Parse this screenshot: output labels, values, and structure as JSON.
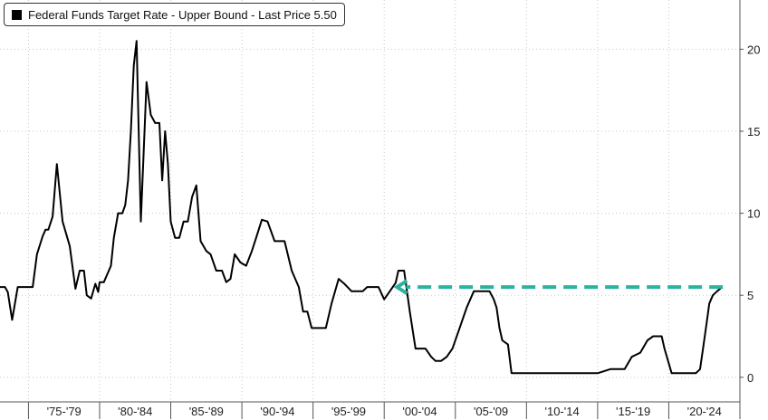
{
  "legend": {
    "label": "Federal Funds Target Rate - Upper Bound - Last Price 5.50"
  },
  "colors": {
    "line": "#000000",
    "arrow": "#2bb3a0",
    "grid": "#c8c8c8",
    "axis": "#555555"
  },
  "chart_data": {
    "type": "line",
    "title": "",
    "xlabel": "",
    "ylabel": "",
    "xlim": [
      1973.0,
      2025.0
    ],
    "ylim": [
      -1.5,
      23.0
    ],
    "y_ticks": [
      0,
      5,
      10,
      15,
      20
    ],
    "x_ticks": [
      "'75-'79",
      "'80-'84",
      "'85-'89",
      "'90-'94",
      "'95-'99",
      "'00-'04",
      "'05-'09",
      "'10-'14",
      "'15-'19",
      "'20-'24"
    ],
    "grid": true,
    "legend_position": "top-left",
    "series": [
      {
        "name": "Federal Funds Target Rate - Upper Bound",
        "last_price": 5.5,
        "x": [
          1973.0,
          1973.35,
          1973.55,
          1973.85,
          1974.25,
          1974.7,
          1975.3,
          1975.6,
          1976.0,
          1976.2,
          1976.4,
          1976.7,
          1977.0,
          1977.4,
          1977.9,
          1978.3,
          1978.6,
          1978.9,
          1979.1,
          1979.4,
          1979.7,
          1979.9,
          1980.0,
          1980.1,
          1980.3,
          1980.55,
          1980.8,
          1981.0,
          1981.3,
          1981.6,
          1981.8,
          1982.0,
          1982.2,
          1982.4,
          1982.6,
          1982.9,
          1983.3,
          1983.6,
          1983.9,
          1984.2,
          1984.4,
          1984.6,
          1984.8,
          1985.0,
          1985.3,
          1985.6,
          1985.9,
          1986.2,
          1986.5,
          1986.8,
          1987.1,
          1987.5,
          1987.8,
          1988.2,
          1988.6,
          1988.9,
          1989.2,
          1989.5,
          1989.9,
          1990.3,
          1990.7,
          1991.0,
          1991.4,
          1991.8,
          1992.3,
          1992.7,
          1993.0,
          1993.5,
          1994.0,
          1994.3,
          1994.6,
          1994.9,
          1995.1,
          1995.3,
          1995.6,
          1995.9,
          1996.3,
          1996.8,
          1997.2,
          1997.7,
          1998.2,
          1998.5,
          1998.8,
          1998.9,
          1999.2,
          1999.6,
          2000.0,
          2000.4,
          2000.8,
          2001.0,
          2001.4,
          2001.8,
          2002.2,
          2002.9,
          2003.3,
          2003.6,
          2004.0,
          2004.4,
          2004.8,
          2005.3,
          2005.8,
          2006.3,
          2006.5,
          2006.9,
          2007.4,
          2007.7,
          2007.9,
          2008.1,
          2008.3,
          2008.7,
          2008.95,
          2009.0,
          2015.0,
          2015.9,
          2016.9,
          2017.4,
          2018.0,
          2018.5,
          2018.9,
          2019.5,
          2019.7,
          2020.2,
          2020.3,
          2021.9,
          2022.2,
          2022.45,
          2022.65,
          2022.85,
          2023.1,
          2023.4,
          2023.75
        ],
        "values": [
          5.5,
          5.5,
          5.2,
          3.5,
          5.5,
          5.5,
          5.5,
          7.5,
          8.6,
          9.0,
          9.0,
          9.8,
          13.0,
          9.5,
          8.0,
          5.4,
          6.5,
          6.5,
          5.0,
          4.8,
          5.7,
          5.2,
          5.8,
          5.8,
          5.8,
          6.3,
          6.8,
          8.5,
          10.0,
          10.0,
          10.5,
          12.0,
          15.0,
          19.0,
          20.5,
          9.5,
          18.0,
          16.0,
          15.5,
          15.5,
          12.0,
          15.0,
          13.0,
          9.5,
          8.5,
          8.5,
          9.5,
          9.5,
          11.0,
          11.7,
          8.3,
          7.7,
          7.5,
          6.5,
          6.5,
          5.8,
          6.0,
          7.5,
          7.0,
          6.8,
          7.7,
          8.5,
          9.6,
          9.5,
          8.3,
          8.3,
          8.3,
          6.5,
          5.5,
          4.0,
          4.0,
          3.0,
          3.0,
          3.0,
          3.0,
          3.0,
          4.5,
          6.0,
          5.7,
          5.25,
          5.25,
          5.25,
          5.5,
          5.5,
          5.5,
          5.5,
          4.75,
          5.25,
          5.75,
          6.5,
          6.5,
          4.0,
          1.75,
          1.75,
          1.25,
          1.0,
          1.0,
          1.25,
          1.75,
          3.0,
          4.25,
          5.25,
          5.25,
          5.25,
          5.25,
          4.75,
          4.25,
          3.0,
          2.25,
          2.0,
          0.25,
          0.25,
          0.25,
          0.5,
          0.5,
          1.25,
          1.5,
          2.25,
          2.5,
          2.5,
          1.75,
          0.25,
          0.25,
          0.25,
          0.5,
          2.0,
          3.25,
          4.5,
          5.0,
          5.25,
          5.5
        ]
      }
    ],
    "annotations": [
      {
        "type": "arrow",
        "direction": "left",
        "style": "dashed",
        "y": 5.5,
        "x_from": 2023.8,
        "x_to": 2000.9
      }
    ]
  }
}
